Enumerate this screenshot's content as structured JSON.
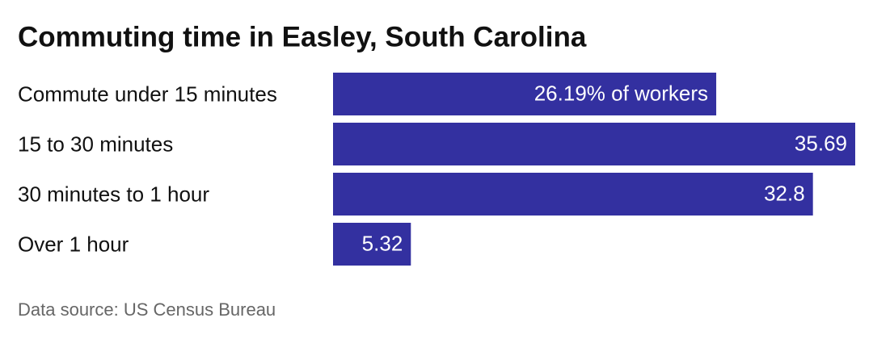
{
  "chart_data": {
    "type": "bar",
    "orientation": "horizontal",
    "title": "Commuting time in Easley, South Carolina",
    "categories": [
      "Commute under 15 minutes",
      "15 to 30 minutes",
      "30 minutes to 1 hour",
      "Over 1 hour"
    ],
    "values": [
      26.19,
      35.69,
      32.8,
      5.32
    ],
    "value_labels": [
      "26.19% of workers",
      "35.69",
      "32.8",
      "5.32"
    ],
    "color": "#3330a0",
    "source": "Data source: US Census Bureau"
  }
}
